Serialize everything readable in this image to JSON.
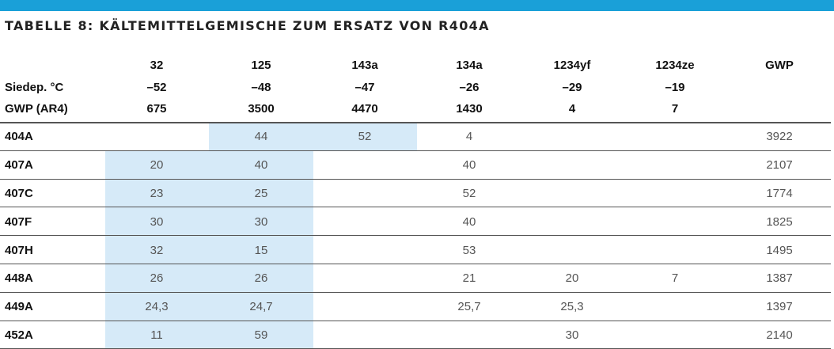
{
  "title": "TABELLE 8: KÄLTEMITTELGEMISCHE ZUM ERSATZ VON R404A",
  "accent_color": "#1aa0d8",
  "shade_color": "#d6eaf8",
  "columns": [
    "32",
    "125",
    "143a",
    "134a",
    "1234yf",
    "1234ze",
    "GWP"
  ],
  "props": [
    {
      "label": "Siedep. °C",
      "values": [
        "–52",
        "–48",
        "–47",
        "–26",
        "–29",
        "–19",
        ""
      ]
    },
    {
      "label": "GWP (AR4)",
      "values": [
        "675",
        "3500",
        "4470",
        "1430",
        "4",
        "7",
        ""
      ]
    }
  ],
  "rows": [
    {
      "name": "404A",
      "values": [
        "",
        "44",
        "52",
        "4",
        "",
        "",
        "3922"
      ]
    },
    {
      "name": "407A",
      "values": [
        "20",
        "40",
        "",
        "40",
        "",
        "",
        "2107"
      ]
    },
    {
      "name": "407C",
      "values": [
        "23",
        "25",
        "",
        "52",
        "",
        "",
        "1774"
      ]
    },
    {
      "name": "407F",
      "values": [
        "30",
        "30",
        "",
        "40",
        "",
        "",
        "1825"
      ]
    },
    {
      "name": "407H",
      "values": [
        "32",
        "15",
        "",
        "53",
        "",
        "",
        "1495"
      ]
    },
    {
      "name": "448A",
      "values": [
        "26",
        "26",
        "",
        "21",
        "20",
        "7",
        "1387"
      ]
    },
    {
      "name": "449A",
      "values": [
        "24,3",
        "24,7",
        "",
        "25,7",
        "25,3",
        "",
        "1397"
      ]
    },
    {
      "name": "452A",
      "values": [
        "11",
        "59",
        "",
        "",
        "30",
        "",
        "2140"
      ]
    }
  ]
}
